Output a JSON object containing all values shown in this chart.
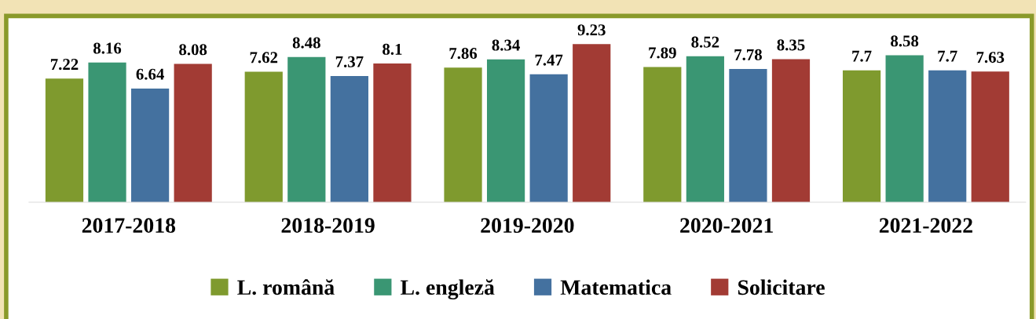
{
  "chart_data": {
    "type": "bar",
    "categories": [
      "2017-2018",
      "2018-2019",
      "2019-2020",
      "2020-2021",
      "2021-2022"
    ],
    "series": [
      {
        "name": "L. română",
        "color": "#7f9a2e",
        "values": [
          7.22,
          7.62,
          7.86,
          7.89,
          7.7
        ]
      },
      {
        "name": "L. engleză",
        "color": "#3a9673",
        "values": [
          8.16,
          8.48,
          8.34,
          8.52,
          8.58
        ]
      },
      {
        "name": "Matematica",
        "color": "#44719f",
        "values": [
          6.64,
          7.37,
          7.47,
          7.78,
          7.7
        ]
      },
      {
        "name": "Solicitare",
        "color": "#a23b34",
        "values": [
          8.08,
          8.1,
          9.23,
          8.35,
          7.63
        ]
      }
    ],
    "data_labels": true,
    "legend": "bottom"
  }
}
